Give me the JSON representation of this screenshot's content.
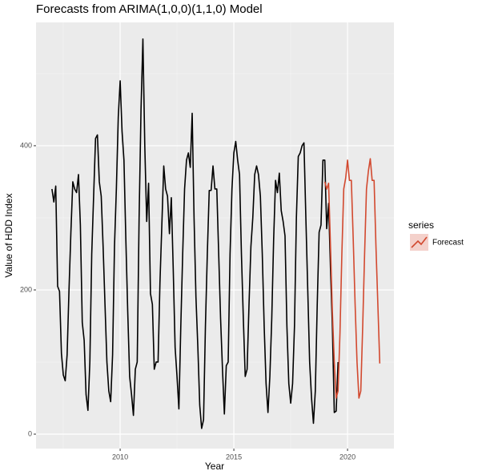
{
  "chart_data": {
    "type": "line",
    "title": "Forecasts from ARIMA(1,0,0)(1,1,0) Model",
    "xlabel": "Year",
    "ylabel": "Value of HDD Index",
    "legend_title": "series",
    "legend": "right",
    "grid": true,
    "xlim": [
      2006.3,
      2022.04
    ],
    "ylim": [
      -20,
      571
    ],
    "xticks": [
      2010,
      2015,
      2020
    ],
    "yticks": [
      0,
      200,
      400
    ],
    "series": [
      {
        "color": "#000000",
        "x": [
          2007.0,
          2007.083,
          2007.167,
          2007.25,
          2007.333,
          2007.417,
          2007.5,
          2007.583,
          2007.667,
          2007.75,
          2007.833,
          2007.917,
          2008.0,
          2008.083,
          2008.167,
          2008.25,
          2008.333,
          2008.417,
          2008.5,
          2008.583,
          2008.667,
          2008.75,
          2008.833,
          2008.917,
          2009.0,
          2009.083,
          2009.167,
          2009.25,
          2009.333,
          2009.417,
          2009.5,
          2009.583,
          2009.667,
          2009.75,
          2009.833,
          2009.917,
          2010.0,
          2010.083,
          2010.167,
          2010.25,
          2010.333,
          2010.417,
          2010.5,
          2010.583,
          2010.667,
          2010.75,
          2010.833,
          2010.917,
          2011.0,
          2011.083,
          2011.167,
          2011.25,
          2011.333,
          2011.417,
          2011.5,
          2011.583,
          2011.667,
          2011.75,
          2011.833,
          2011.917,
          2012.0,
          2012.083,
          2012.167,
          2012.25,
          2012.333,
          2012.417,
          2012.5,
          2012.583,
          2012.667,
          2012.75,
          2012.833,
          2012.917,
          2013.0,
          2013.083,
          2013.167,
          2013.25,
          2013.333,
          2013.417,
          2013.5,
          2013.583,
          2013.667,
          2013.75,
          2013.833,
          2013.917,
          2014.0,
          2014.083,
          2014.167,
          2014.25,
          2014.333,
          2014.417,
          2014.5,
          2014.583,
          2014.667,
          2014.75,
          2014.833,
          2014.917,
          2015.0,
          2015.083,
          2015.167,
          2015.25,
          2015.333,
          2015.417,
          2015.5,
          2015.583,
          2015.667,
          2015.75,
          2015.833,
          2015.917,
          2016.0,
          2016.083,
          2016.167,
          2016.25,
          2016.333,
          2016.417,
          2016.5,
          2016.583,
          2016.667,
          2016.75,
          2016.833,
          2016.917,
          2017.0,
          2017.083,
          2017.167,
          2017.25,
          2017.333,
          2017.417,
          2017.5,
          2017.583,
          2017.667,
          2017.75,
          2017.833,
          2017.917,
          2018.0,
          2018.083,
          2018.167,
          2018.25,
          2018.333,
          2018.417,
          2018.5,
          2018.583,
          2018.667,
          2018.75,
          2018.833,
          2018.917,
          2019.0,
          2019.083,
          2019.167,
          2019.25,
          2019.333,
          2019.417,
          2019.5,
          2019.583
        ],
        "values": [
          340,
          322,
          344,
          205,
          198,
          112,
          82,
          74,
          110,
          200,
          280,
          350,
          340,
          335,
          360,
          290,
          155,
          130,
          55,
          33,
          100,
          250,
          330,
          410,
          415,
          350,
          330,
          260,
          180,
          100,
          60,
          45,
          110,
          260,
          340,
          440,
          490,
          420,
          380,
          270,
          170,
          80,
          55,
          26,
          90,
          100,
          300,
          450,
          548,
          400,
          295,
          348,
          195,
          180,
          90,
          100,
          100,
          210,
          290,
          372,
          340,
          330,
          278,
          328,
          230,
          120,
          80,
          35,
          150,
          250,
          340,
          380,
          390,
          370,
          445,
          300,
          190,
          120,
          40,
          8,
          20,
          150,
          250,
          338,
          338,
          372,
          340,
          340,
          250,
          160,
          90,
          28,
          95,
          100,
          250,
          340,
          390,
          406,
          380,
          360,
          250,
          160,
          80,
          90,
          180,
          260,
          300,
          360,
          372,
          360,
          330,
          250,
          150,
          70,
          30,
          80,
          160,
          270,
          352,
          335,
          362,
          310,
          295,
          275,
          150,
          70,
          43,
          70,
          150,
          300,
          385,
          390,
          400,
          404,
          300,
          200,
          100,
          50,
          15,
          60,
          180,
          280,
          290,
          380,
          380,
          285,
          320,
          230,
          150,
          30,
          32,
          100
        ]
      },
      {
        "name": "Forecast",
        "color": "#d2492f",
        "x": [
          2019.0,
          2019.083,
          2019.167,
          2019.25,
          2019.333,
          2019.417,
          2019.5,
          2019.583,
          2019.667,
          2019.75,
          2019.833,
          2019.917,
          2020.0,
          2020.083,
          2020.167,
          2020.25,
          2020.333,
          2020.417,
          2020.5,
          2020.583,
          2020.667,
          2020.75,
          2020.833,
          2020.917,
          2021.0,
          2021.083,
          2021.167,
          2021.25,
          2021.333,
          2021.417
        ],
        "values": [
          350,
          340,
          348,
          260,
          170,
          100,
          50,
          60,
          140,
          250,
          340,
          355,
          380,
          352,
          352,
          270,
          180,
          100,
          50,
          60,
          150,
          250,
          340,
          365,
          382,
          352,
          352,
          260,
          180,
          98
        ]
      }
    ]
  }
}
